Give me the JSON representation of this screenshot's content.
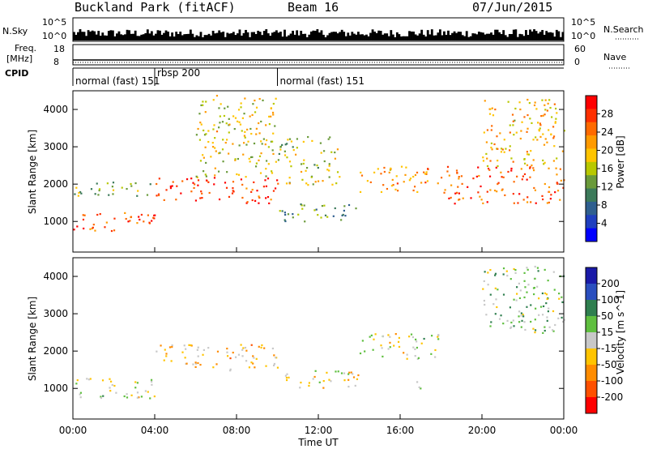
{
  "header": {
    "title": "Buckland Park (fitACF)",
    "beam": "Beam 16",
    "date": "07/Jun/2015"
  },
  "nsky_panel": {
    "left_label": "N.Sky",
    "right_label": "N.Search",
    "left_ticks": [
      "10^5",
      "10^0"
    ],
    "right_ticks": [
      "10^5",
      "10^0"
    ]
  },
  "freq_panel": {
    "left_label_1": "Freq.",
    "left_label_2": "[MHz]",
    "right_label": "Nave",
    "left_ticks": [
      "18",
      "8"
    ],
    "right_ticks": [
      "60",
      "0"
    ]
  },
  "cpid_panel": {
    "label": "CPID",
    "segments": [
      {
        "start_hour": 0,
        "end_hour": 4,
        "label": "normal (fast) 151"
      },
      {
        "start_hour": 4,
        "end_hour": 10,
        "label": "rbsp 200"
      },
      {
        "start_hour": 10,
        "end_hour": 24,
        "label": "normal (fast) 151"
      }
    ]
  },
  "power_panel": {
    "ylabel": "Slant Range [km]",
    "colorbar_label": "Power [dB]",
    "colorbar_ticks": [
      "28",
      "24",
      "20",
      "16",
      "12",
      "8",
      "4"
    ],
    "colors": [
      "#ff0000",
      "#ff3000",
      "#ff6a00",
      "#ff9a00",
      "#ffc400",
      "#b8c800",
      "#6a9a3a",
      "#3c7a5a",
      "#2f5f8f",
      "#1f3fbf",
      "#0000ff"
    ]
  },
  "velocity_panel": {
    "ylabel": "Slant Range [km]",
    "colorbar_label": "Velocity [m s^-1]",
    "colorbar_ticks": [
      "200",
      "100",
      "50",
      "15",
      "-15",
      "-50",
      "-100",
      "-200"
    ],
    "colors": [
      "#1a1aa8",
      "#2a4fbf",
      "#2f7f4f",
      "#5fbf3f",
      "#c8c8c8",
      "#ffc400",
      "#ff8c00",
      "#ff5000",
      "#ff0000"
    ]
  },
  "x_axis": {
    "label": "Time UT",
    "ticks": [
      "00:00",
      "04:00",
      "08:00",
      "12:00",
      "16:00",
      "20:00",
      "00:00"
    ]
  },
  "chart_data": [
    {
      "type": "heatmap",
      "title": "Power",
      "xlabel": "Time UT",
      "ylabel": "Slant Range [km]",
      "xlim": [
        0,
        24
      ],
      "ylim": [
        180,
        4500
      ],
      "yticks": [
        1000,
        2000,
        3000,
        4000
      ],
      "colorbar": {
        "label": "Power [dB]",
        "range": [
          0,
          32
        ],
        "ticks": [
          4,
          8,
          12,
          16,
          20,
          24,
          28
        ]
      },
      "echo_bands": [
        {
          "t": [
            0,
            4
          ],
          "range": [
            750,
            1300
          ],
          "power": 26
        },
        {
          "t": [
            0,
            4
          ],
          "range": [
            1700,
            2100
          ],
          "power": 14
        },
        {
          "t": [
            4,
            10
          ],
          "range": [
            1500,
            2200
          ],
          "power": 28
        },
        {
          "t": [
            6,
            10
          ],
          "range": [
            2200,
            4400
          ],
          "power": 18
        },
        {
          "t": [
            10,
            14
          ],
          "range": [
            1000,
            1500
          ],
          "power": 12
        },
        {
          "t": [
            10,
            13
          ],
          "range": [
            2000,
            3300
          ],
          "power": 16
        },
        {
          "t": [
            14,
            18
          ],
          "range": [
            1800,
            2500
          ],
          "power": 22
        },
        {
          "t": [
            18,
            24
          ],
          "range": [
            1500,
            2500
          ],
          "power": 26
        },
        {
          "t": [
            20,
            24
          ],
          "range": [
            2500,
            4300
          ],
          "power": 20
        }
      ]
    },
    {
      "type": "heatmap",
      "title": "Velocity",
      "xlabel": "Time UT",
      "ylabel": "Slant Range [km]",
      "xlim": [
        0,
        24
      ],
      "ylim": [
        180,
        4500
      ],
      "yticks": [
        1000,
        2000,
        3000,
        4000
      ],
      "colorbar": {
        "label": "Velocity [m s^-1]",
        "range": [
          -250,
          250
        ],
        "ticks": [
          200,
          100,
          50,
          15,
          -15,
          -50,
          -100,
          -200
        ]
      },
      "echo_bands": [
        {
          "t": [
            0,
            4
          ],
          "range": [
            750,
            1300
          ],
          "velocity": 0
        },
        {
          "t": [
            4,
            10
          ],
          "range": [
            1500,
            2200
          ],
          "velocity": -60
        },
        {
          "t": [
            10,
            14
          ],
          "range": [
            1000,
            1500
          ],
          "velocity": -20
        },
        {
          "t": [
            14,
            18
          ],
          "range": [
            1800,
            2500
          ],
          "velocity": 0
        },
        {
          "t": [
            16,
            17
          ],
          "range": [
            1000,
            1200
          ],
          "velocity": 40
        },
        {
          "t": [
            20,
            24
          ],
          "range": [
            2500,
            4300
          ],
          "velocity": 40
        }
      ]
    }
  ]
}
